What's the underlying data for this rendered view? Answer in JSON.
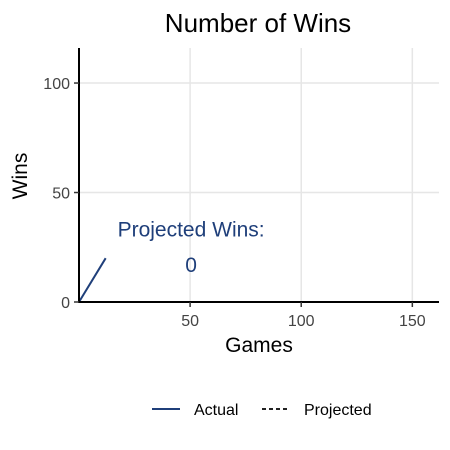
{
  "chart_data": {
    "type": "line",
    "title": "Number of Wins",
    "xlabel": "Games",
    "ylabel": "Wins",
    "xlim": [
      0,
      162
    ],
    "ylim": [
      0,
      116
    ],
    "x_ticks": [
      50,
      100,
      150
    ],
    "y_ticks": [
      0,
      50,
      100
    ],
    "grid": true,
    "colors": {
      "actual": "#1f3f7a",
      "projected": "#222222",
      "annotation": "#1f3f7a",
      "grid": "#e6e6e6",
      "axis": "#000000"
    },
    "series": [
      {
        "name": "Actual",
        "style": "solid",
        "x": [
          0,
          12
        ],
        "y": [
          0,
          20
        ]
      },
      {
        "name": "Projected",
        "style": "dashed",
        "x": [],
        "y": []
      }
    ],
    "annotation": {
      "label": "Projected Wins:",
      "value": "0",
      "x": 50,
      "y_label": 33,
      "y_value": 17
    },
    "legend": {
      "position": "bottom",
      "entries": [
        "Actual",
        "Projected"
      ]
    }
  }
}
